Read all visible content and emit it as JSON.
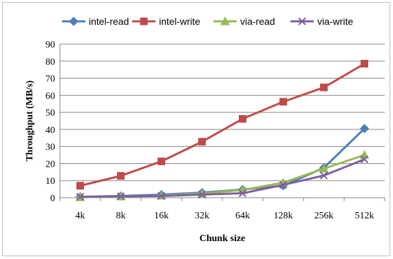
{
  "chart_data": {
    "type": "line",
    "title": "",
    "xlabel": "Chunk size",
    "ylabel": "Throughput (MB/s)",
    "categories": [
      "4k",
      "8k",
      "16k",
      "32k",
      "64k",
      "128k",
      "256k",
      "512k"
    ],
    "ylim": [
      0,
      90
    ],
    "yticks": [
      0,
      10,
      20,
      30,
      40,
      50,
      60,
      70,
      80,
      90
    ],
    "grid": true,
    "legend_position": "top",
    "series": [
      {
        "name": "intel-read",
        "color": "#4a7ebb",
        "marker": "diamond",
        "values": [
          0.5,
          1.0,
          1.8,
          3.0,
          4.8,
          7.0,
          17.5,
          40.5
        ]
      },
      {
        "name": "intel-write",
        "color": "#be4b48",
        "marker": "square",
        "values": [
          7.0,
          12.8,
          21.3,
          32.8,
          46.2,
          56.2,
          64.6,
          78.5
        ]
      },
      {
        "name": "via-read",
        "color": "#98b954",
        "marker": "triangle",
        "values": [
          0.3,
          0.7,
          1.2,
          2.5,
          4.5,
          8.8,
          17.0,
          25.0
        ]
      },
      {
        "name": "via-write",
        "color": "#7d60a0",
        "marker": "x",
        "values": [
          0.5,
          0.8,
          1.0,
          1.8,
          2.6,
          7.5,
          13.0,
          22.5
        ]
      }
    ]
  }
}
